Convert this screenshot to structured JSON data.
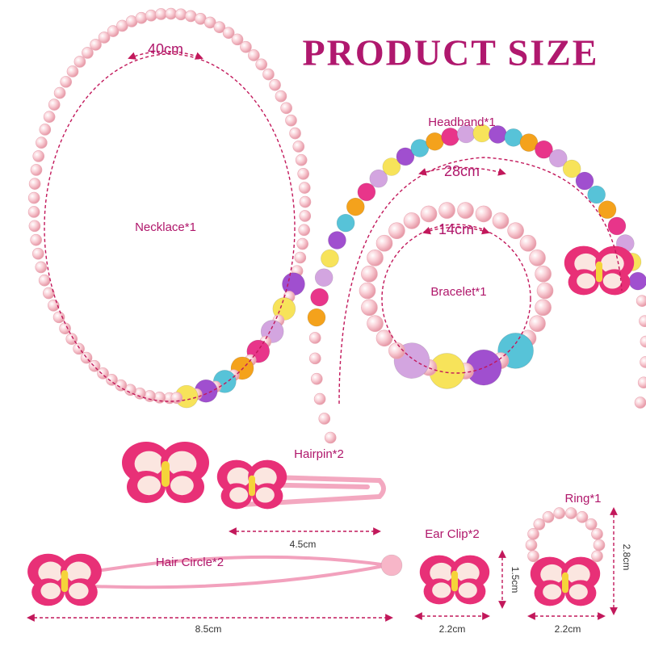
{
  "title": "PRODUCT SIZE",
  "necklace": {
    "name": "Necklace*1",
    "size": "40cm"
  },
  "headband": {
    "name": "Headband*1",
    "size": "28cm"
  },
  "bracelet": {
    "name": "Bracelet*1",
    "size": "14cm"
  },
  "hairpin": {
    "name": "Hairpin*2",
    "size": "4.5cm"
  },
  "hair_circle": {
    "name": "Hair Circle*2",
    "size": "8.5cm"
  },
  "ear_clip": {
    "name": "Ear Clip*2",
    "height": "1.5cm",
    "width": "2.2cm"
  },
  "ring": {
    "name": "Ring*1",
    "height": "2.8cm",
    "width": "2.2cm"
  }
}
